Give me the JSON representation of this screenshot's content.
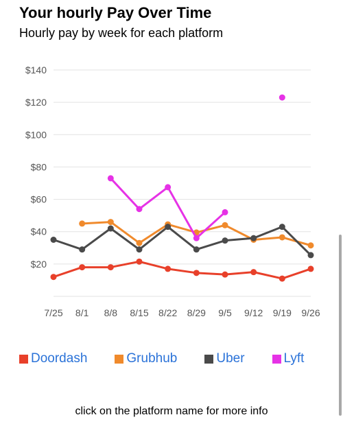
{
  "header": {
    "title": "Your hourly Pay Over Time",
    "subtitle": "Hourly pay by week for each platform"
  },
  "chart_data": {
    "type": "line",
    "title": "Your hourly Pay Over Time",
    "subtitle": "Hourly pay by week for each platform",
    "categories": [
      "7/25",
      "8/1",
      "8/8",
      "8/15",
      "8/22",
      "8/29",
      "9/5",
      "9/12",
      "9/19",
      "9/26"
    ],
    "y_ticks": [
      "$140",
      "$120",
      "$100",
      "$80",
      "$60",
      "$40",
      "$20"
    ],
    "y_tick_values": [
      140,
      120,
      100,
      80,
      60,
      40,
      20
    ],
    "ylim": [
      0,
      140
    ],
    "grid": true,
    "legend_position": "bottom",
    "series": [
      {
        "name": "Doordash",
        "color": "#e8402a",
        "values": [
          12,
          18,
          18,
          21.5,
          17,
          14.5,
          13.5,
          15,
          11,
          17
        ]
      },
      {
        "name": "Grubhub",
        "color": "#f08a2c",
        "values": [
          null,
          45,
          46,
          33,
          44.5,
          39.5,
          44,
          35,
          36.5,
          31.5
        ]
      },
      {
        "name": "Uber",
        "color": "#4a4a4a",
        "values": [
          35,
          29,
          42,
          29,
          43,
          29,
          34.5,
          36,
          43,
          25.5
        ]
      },
      {
        "name": "Lyft",
        "color": "#e632e6",
        "values": [
          null,
          null,
          73,
          54,
          67.5,
          36,
          52,
          null,
          123,
          null
        ]
      }
    ]
  },
  "legend": {
    "items": [
      {
        "label": "Doordash",
        "color": "#e8402a"
      },
      {
        "label": "Grubhub",
        "color": "#f08a2c"
      },
      {
        "label": "Uber",
        "color": "#4a4a4a"
      },
      {
        "label": "Lyft",
        "color": "#e632e6"
      }
    ]
  },
  "footer": {
    "note": "click on the platform name for more info"
  }
}
